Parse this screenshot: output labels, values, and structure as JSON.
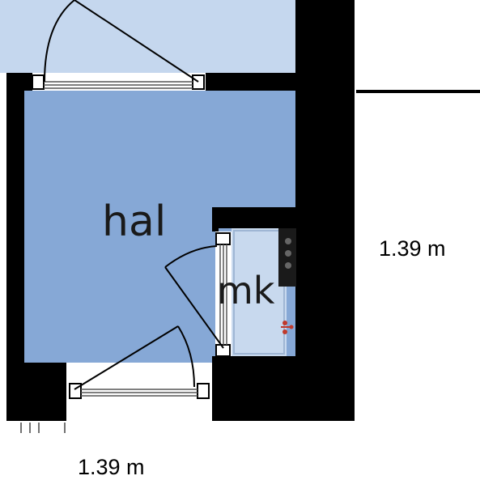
{
  "rooms": {
    "hall": "hal",
    "toilet": "mk"
  },
  "dimensions": {
    "bottom": "1.39 m",
    "right": "1.39 m"
  },
  "colors": {
    "hall_fill": "#86a8d6",
    "upper_room_fill": "#c5d7ee",
    "toilet_fill": "#c8d9ee",
    "wall": "#000000",
    "background": "#ffffff",
    "fixture_red": "#c0392b"
  }
}
